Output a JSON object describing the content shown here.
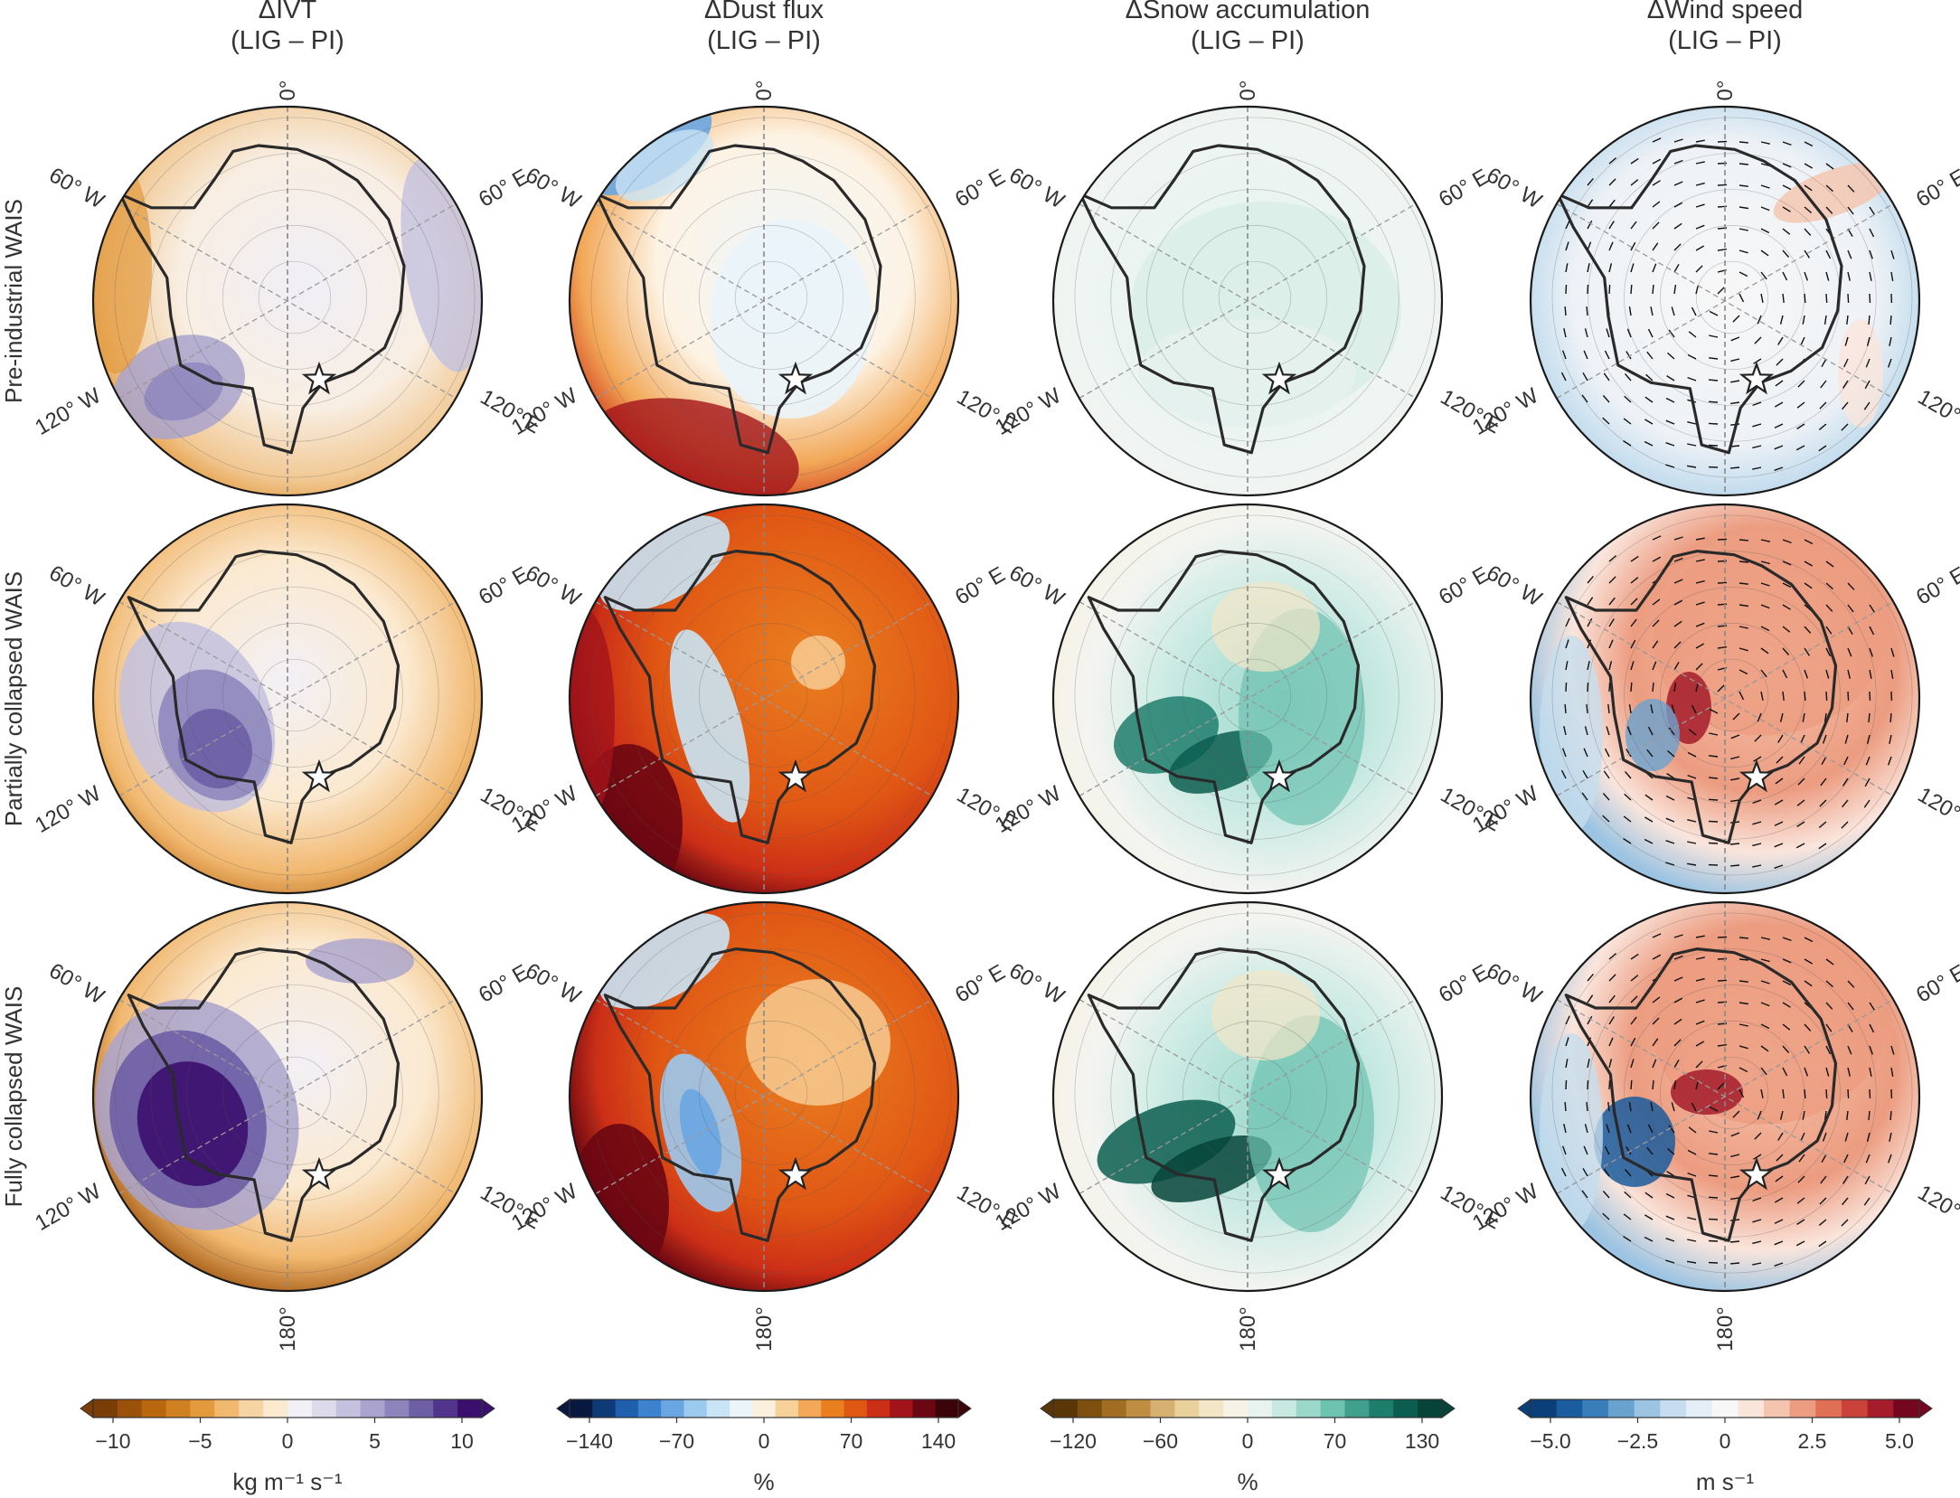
{
  "columns": [
    {
      "title": "ΔIVT",
      "subtitle": "(LIG – PI)"
    },
    {
      "title": "ΔDust flux",
      "subtitle": "(LIG – PI)"
    },
    {
      "title": "ΔSnow accumulation",
      "subtitle": "(LIG – PI)"
    },
    {
      "title": "ΔWind speed",
      "subtitle": "(LIG – PI)"
    }
  ],
  "rows": [
    "Pre-industrial WAIS",
    "Partially collapsed WAIS",
    "Fully collapsed WAIS"
  ],
  "map_labels": {
    "top": "0°",
    "bottom": "180°",
    "upper_left": "60° W",
    "upper_right": "60° E",
    "lower_left": "120° W",
    "lower_right": "120° E"
  },
  "colorbars": [
    {
      "ticks": [
        "−10",
        "−5",
        "0",
        "5",
        "10"
      ],
      "unit": "kg m⁻¹ s⁻¹",
      "colors": [
        "#7a3d05",
        "#9c510b",
        "#b8670f",
        "#d08020",
        "#e39a3e",
        "#f1b870",
        "#f7d4a3",
        "#fbe9d0",
        "#f2f0f6",
        "#dcdaeb",
        "#c3c1de",
        "#a9a3cd",
        "#8c84bb",
        "#6d5ea5",
        "#53348c",
        "#3b0f6e"
      ]
    },
    {
      "ticks": [
        "−140",
        "−70",
        "0",
        "70",
        "140"
      ],
      "unit": "%",
      "colors": [
        "#08183f",
        "#0f3a78",
        "#1f5fae",
        "#3d82cf",
        "#6aa6e2",
        "#9cc9ee",
        "#c9e4f4",
        "#eaf4f9",
        "#fbf0dd",
        "#f8d19a",
        "#f2a858",
        "#ea7f20",
        "#e05714",
        "#cc2f17",
        "#a3141a",
        "#6b0712",
        "#3a0408"
      ]
    },
    {
      "ticks": [
        "−120",
        "−60",
        "0",
        "70",
        "130"
      ],
      "unit": "%",
      "colors": [
        "#5b3707",
        "#7e500f",
        "#a06d22",
        "#bf8e43",
        "#d6b070",
        "#e8d19c",
        "#f3e6c6",
        "#f6f2e6",
        "#e8f2ef",
        "#c7e9e2",
        "#9bd8ca",
        "#6ec2b0",
        "#409f8d",
        "#1e7e6c",
        "#0b5e4f",
        "#06443a"
      ]
    },
    {
      "ticks": [
        "−5.0",
        "−2.5",
        "0",
        "2.5",
        "5.0"
      ],
      "unit": "m s⁻¹",
      "colors": [
        "#0a3f7a",
        "#1a5c9e",
        "#3a7dbb",
        "#6aa2cf",
        "#9cc4e2",
        "#c5ddee",
        "#e5eef6",
        "#f7f7f7",
        "#fae5dc",
        "#f5c4ae",
        "#ec9c80",
        "#df6f55",
        "#c9433a",
        "#a51c2b",
        "#75061f"
      ]
    }
  ]
}
